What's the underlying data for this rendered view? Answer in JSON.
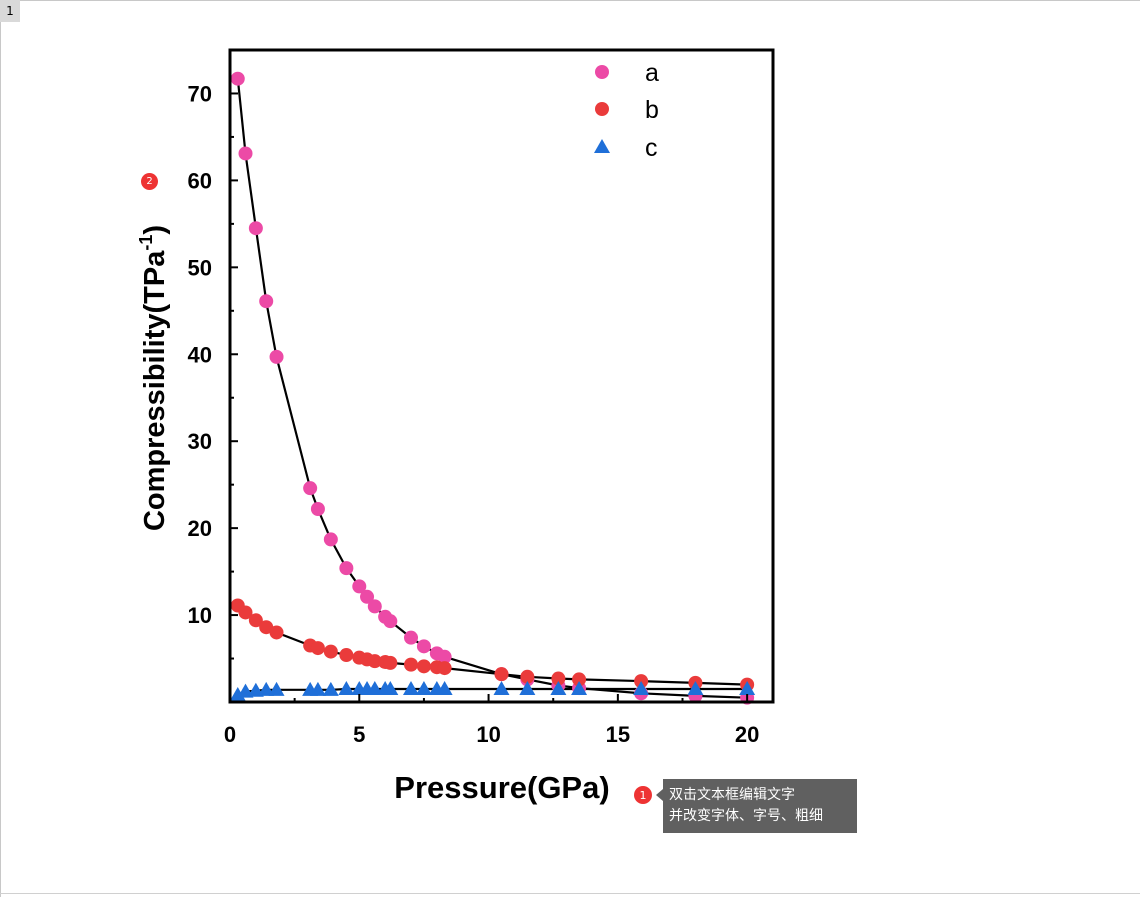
{
  "page": {
    "tab_label": "1"
  },
  "tooltip": {
    "line1": "双击文本框编辑文字",
    "line2": "并改变字体、字号、粗细"
  },
  "badges": {
    "b1": "1",
    "b2": "2"
  },
  "colors": {
    "a": "#ec4aa6",
    "b": "#ea3b3b",
    "c": "#1f6fd8",
    "fit": "#000000"
  },
  "chart_data": {
    "type": "scatter",
    "xlabel": "Pressure(GPa)",
    "ylabel": "Compressibility(TPa",
    "ylabel_sup": "-1",
    "ylabel_close": ")",
    "xlim": [
      0,
      21
    ],
    "ylim": [
      0,
      75
    ],
    "xticks": [
      0,
      5,
      10,
      15,
      20
    ],
    "yticks": [
      10,
      20,
      30,
      40,
      50,
      60,
      70
    ],
    "legend_position": "top-right",
    "series": [
      {
        "name": "a",
        "marker": "circle",
        "x": [
          0.3,
          0.6,
          1.0,
          1.4,
          1.8,
          3.1,
          3.4,
          3.9,
          4.5,
          5.0,
          5.3,
          5.6,
          6.0,
          6.2,
          7.0,
          7.5,
          8.0,
          8.3,
          10.5,
          11.5,
          12.7,
          13.5,
          15.9,
          18.0,
          20.0
        ],
        "y": [
          71.7,
          63.1,
          54.5,
          46.1,
          39.7,
          24.6,
          22.2,
          18.7,
          15.4,
          13.3,
          12.1,
          11.0,
          9.8,
          9.3,
          7.4,
          6.4,
          5.6,
          5.2,
          3.2,
          2.6,
          1.9,
          1.6,
          1.0,
          0.7,
          0.5
        ]
      },
      {
        "name": "b",
        "marker": "circle",
        "x": [
          0.3,
          0.6,
          1.0,
          1.4,
          1.8,
          3.1,
          3.4,
          3.9,
          4.5,
          5.0,
          5.3,
          5.6,
          6.0,
          6.2,
          7.0,
          7.5,
          8.0,
          8.3,
          10.5,
          11.5,
          12.7,
          13.5,
          15.9,
          18.0,
          20.0
        ],
        "y": [
          11.1,
          10.3,
          9.4,
          8.6,
          8.0,
          6.5,
          6.2,
          5.8,
          5.4,
          5.1,
          4.9,
          4.7,
          4.6,
          4.5,
          4.3,
          4.1,
          4.0,
          3.9,
          3.2,
          2.9,
          2.7,
          2.6,
          2.4,
          2.2,
          2.0
        ]
      },
      {
        "name": "c",
        "marker": "triangle",
        "x": [
          0.3,
          0.6,
          1.0,
          1.4,
          1.8,
          3.1,
          3.4,
          3.9,
          4.5,
          5.0,
          5.3,
          5.6,
          6.0,
          6.2,
          7.0,
          7.5,
          8.0,
          8.3,
          10.5,
          11.5,
          12.7,
          13.5,
          15.9,
          18.0,
          20.0
        ],
        "y": [
          0.8,
          1.2,
          1.3,
          1.4,
          1.4,
          1.4,
          1.4,
          1.4,
          1.5,
          1.5,
          1.5,
          1.5,
          1.5,
          1.5,
          1.5,
          1.5,
          1.5,
          1.5,
          1.5,
          1.5,
          1.5,
          1.5,
          1.5,
          1.5,
          1.5
        ]
      }
    ]
  }
}
